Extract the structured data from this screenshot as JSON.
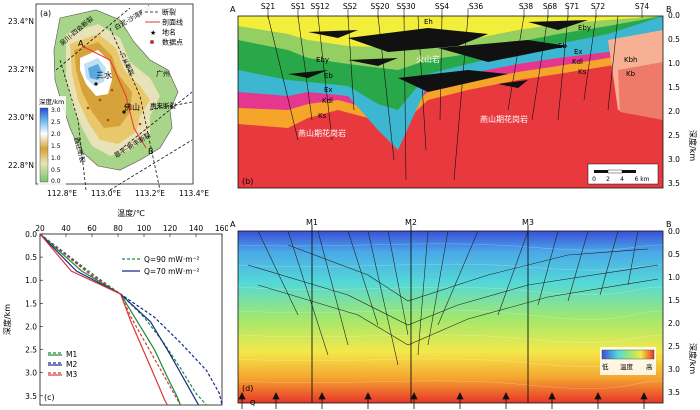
{
  "panel_a": {
    "label": "(a)",
    "lat_ticks": [
      "23.4°N",
      "23.2°N",
      "23.0°N",
      "22.8°N"
    ],
    "lon_ticks": [
      "112.8°E",
      "113.0°E",
      "113.2°E",
      "113.4°E"
    ],
    "legend": {
      "fault": "断裂",
      "profile": "剖面线",
      "place": "地名",
      "data_point": "数据点"
    },
    "colorbar": {
      "title": "深度/km",
      "ticks": [
        "3.0",
        "2.5",
        "2.0",
        "1.5",
        "1.0",
        "0.5",
        "0.0"
      ]
    },
    "place_labels": [
      "三水",
      "佛山",
      "广州"
    ],
    "fault_labels": [
      "吴川-四会断裂",
      "广从断裂",
      "白泥-沙湾断裂",
      "惠来断裂",
      "西江断裂",
      "恩平-新丰断裂"
    ],
    "profile_end_a": "A",
    "profile_end_b": "B"
  },
  "panel_b": {
    "label": "(b)",
    "end_a": "A",
    "end_b": "B",
    "wells": [
      "S21",
      "SS1",
      "SS12",
      "SS2",
      "SS20",
      "SS30",
      "SS4",
      "S36",
      "S38",
      "S68",
      "S71",
      "S72",
      "S74"
    ],
    "depth_ticks": [
      "0.0",
      "0.5",
      "1.0",
      "1.5",
      "2.0",
      "2.5",
      "3.0",
      "3.5"
    ],
    "depth_axis_label": "深度/km",
    "unit_labels": [
      "Eh",
      "Eby",
      "Eb",
      "Ex",
      "Kdl",
      "Ks",
      "Kbh",
      "Kb"
    ],
    "volcanic_label": "火山岩",
    "granite_label": "燕山期花岗岩",
    "scale_ticks": [
      "0",
      "2",
      "4",
      "6 km"
    ]
  },
  "panel_c": {
    "label": "(c)",
    "xlabel": "温度/℃",
    "ylabel": "深度/km",
    "legend_q": [
      "Q=90 mW·m⁻²",
      "Q=70 mW·m⁻²"
    ],
    "legend_wells": [
      "M1",
      "M2",
      "M3"
    ]
  },
  "panel_d": {
    "label": "(d)",
    "end_a": "A",
    "end_b": "B",
    "wells": [
      "M1",
      "M2",
      "M3"
    ],
    "depth_ticks": [
      "0.0",
      "0.5",
      "1.0",
      "1.5",
      "2.0",
      "2.5",
      "3.0",
      "3.5"
    ],
    "depth_axis_label": "深度/km",
    "colorbar_low": "低",
    "colorbar_high": "高",
    "colorbar_title": "温度",
    "heat_flow_label": "Q"
  },
  "colors": {
    "granite": "#e8393f",
    "volcanic": "#111111",
    "Eh": "#f2ee3a",
    "Eby": "#95cf61",
    "Eb": "#29a84a",
    "Ex": "#3db7d1",
    "Kdl": "#e4378d",
    "Ks": "#f4a52a",
    "Kbh": "#f7b093",
    "Kb": "#ed7a6a",
    "q90": "#1a8a3a",
    "q70": "#1a2a8a",
    "M1": "#1a8a3a",
    "M2": "#1a2a8a",
    "M3": "#d93838"
  },
  "chart_data": {
    "type": "line",
    "title": "",
    "xlabel": "温度/℃",
    "ylabel": "深度/km",
    "xlim": [
      20,
      160
    ],
    "ylim": [
      3.7,
      0.0
    ],
    "x_ticks": [
      20,
      40,
      60,
      80,
      100,
      120,
      140,
      160
    ],
    "y_ticks": [
      0.0,
      0.5,
      1.0,
      1.5,
      2.0,
      2.5,
      3.0,
      3.5
    ],
    "series": [
      {
        "name": "Q=90 mW·m⁻² (M1)",
        "style": "dashed",
        "color": "#1a8a3a",
        "points": [
          [
            20,
            0.0
          ],
          [
            62,
            0.9
          ],
          [
            82,
            1.3
          ],
          [
            100,
            1.8
          ],
          [
            115,
            2.35
          ],
          [
            128,
            2.9
          ],
          [
            140,
            3.45
          ],
          [
            148,
            3.7
          ]
        ]
      },
      {
        "name": "Q=90 mW·m⁻² (M2)",
        "style": "dashed",
        "color": "#1a2a8a",
        "points": [
          [
            20,
            0.0
          ],
          [
            60,
            0.9
          ],
          [
            82,
            1.3
          ],
          [
            108,
            1.8
          ],
          [
            128,
            2.35
          ],
          [
            148,
            2.95
          ],
          [
            158,
            3.45
          ],
          [
            160,
            3.7
          ]
        ]
      },
      {
        "name": "Q=90 mW·m⁻² (M3)",
        "style": "dashed",
        "color": "#d93838",
        "points": [
          [
            20,
            0.0
          ],
          [
            55,
            0.8
          ],
          [
            82,
            1.3
          ],
          [
            90,
            1.8
          ],
          [
            102,
            2.4
          ],
          [
            114,
            3.0
          ],
          [
            124,
            3.5
          ],
          [
            128,
            3.7
          ]
        ]
      },
      {
        "name": "M1",
        "style": "solid",
        "color": "#1a8a3a",
        "points": [
          [
            20,
            0.0
          ],
          [
            52,
            0.8
          ],
          [
            82,
            1.3
          ],
          [
            95,
            1.9
          ],
          [
            108,
            2.5
          ],
          [
            118,
            3.1
          ],
          [
            126,
            3.55
          ],
          [
            128,
            3.7
          ]
        ]
      },
      {
        "name": "M2",
        "style": "solid",
        "color": "#1a2a8a",
        "points": [
          [
            20,
            0.0
          ],
          [
            48,
            0.8
          ],
          [
            82,
            1.3
          ],
          [
            105,
            1.9
          ],
          [
            120,
            2.6
          ],
          [
            132,
            3.2
          ],
          [
            140,
            3.6
          ],
          [
            142,
            3.7
          ]
        ]
      },
      {
        "name": "M3",
        "style": "solid",
        "color": "#d93838",
        "points": [
          [
            20,
            0.0
          ],
          [
            44,
            0.8
          ],
          [
            82,
            1.3
          ],
          [
            90,
            1.9
          ],
          [
            100,
            2.55
          ],
          [
            110,
            3.2
          ],
          [
            116,
            3.6
          ],
          [
            118,
            3.7
          ]
        ]
      }
    ]
  }
}
